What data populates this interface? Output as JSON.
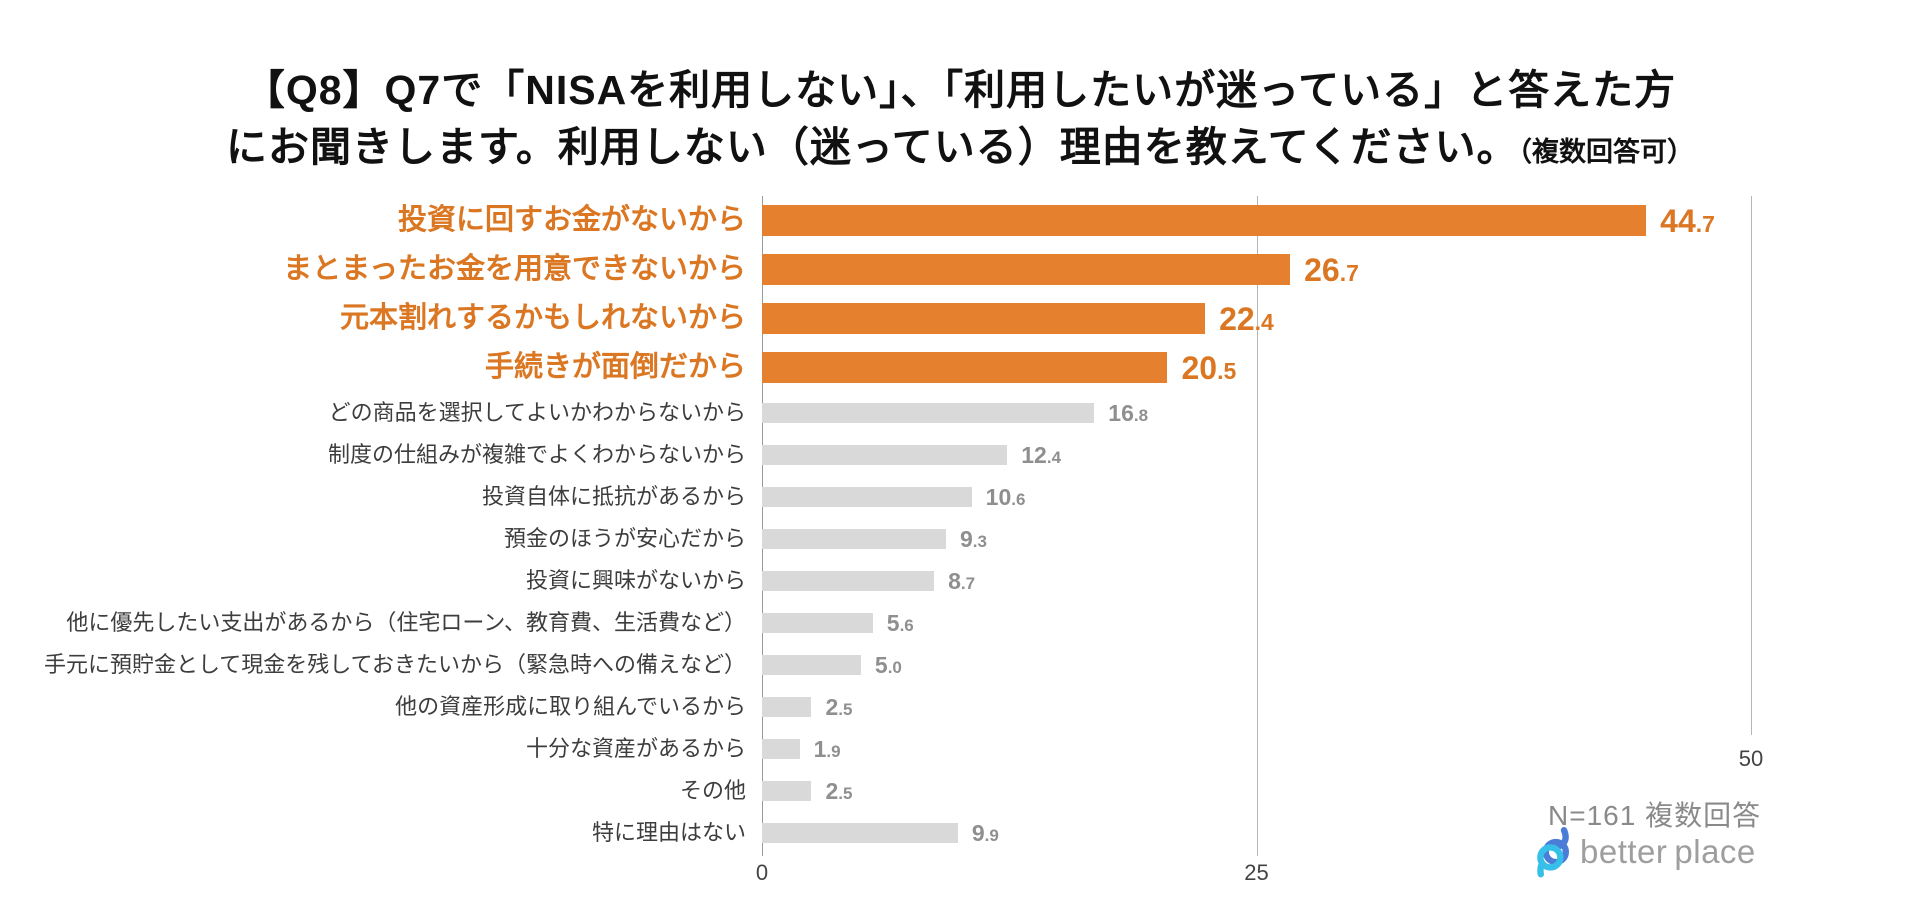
{
  "title": {
    "line1": "【Q8】Q7で「NISAを利用しない」、「利用したいが迷っている」と答えた方",
    "line2": "にお聞きします。利用しない（迷っている）理由を教えてください。",
    "note": "（複数回答可）"
  },
  "chart_data": {
    "type": "bar",
    "orientation": "horizontal",
    "categories": [
      "投資に回すお金がないから",
      "まとまったお金を用意できないから",
      "元本割れするかもしれないから",
      "手続きが面倒だから",
      "どの商品を選択してよいかわからないから",
      "制度の仕組みが複雑でよくわからないから",
      "投資自体に抵抗があるから",
      "預金のほうが安心だから",
      "投資に興味がないから",
      "他に優先したい支出があるから（住宅ローン、教育費、生活費など）",
      "手元に預貯金として現金を残しておきたいから（緊急時への備えなど）",
      "他の資産形成に取り組んでいるから",
      "十分な資産があるから",
      "その他",
      "特に理由はない"
    ],
    "values": [
      "44.7",
      "26.7",
      "22.4",
      "20.5",
      "16.8",
      "12.4",
      "10.6",
      "9.3",
      "8.7",
      "5.6",
      "5.0",
      "2.5",
      "1.9",
      "2.5",
      "9.9"
    ],
    "highlighted_rows": 4,
    "xlim": [
      0,
      50
    ],
    "x_ticks": [
      "0",
      "25",
      "50"
    ],
    "grid": "vertical gridlines at 0 / 25 / 50",
    "legend": "none",
    "footnote": "N=161  複数回答",
    "colors": {
      "highlight_bar": "#E5802F",
      "highlight_text": "#DB7722",
      "bar": "#D9D9D9",
      "value_text": "#8F8F8F",
      "label_text": "#3D3D3D",
      "gridline": "#B5B5B5",
      "axis_line": "#9A9A9A"
    }
  },
  "branding": {
    "logo_text_1": "better",
    "logo_text_2": "place",
    "logo_blue": "#4B7DD8",
    "logo_cyan": "#35BFE9"
  }
}
